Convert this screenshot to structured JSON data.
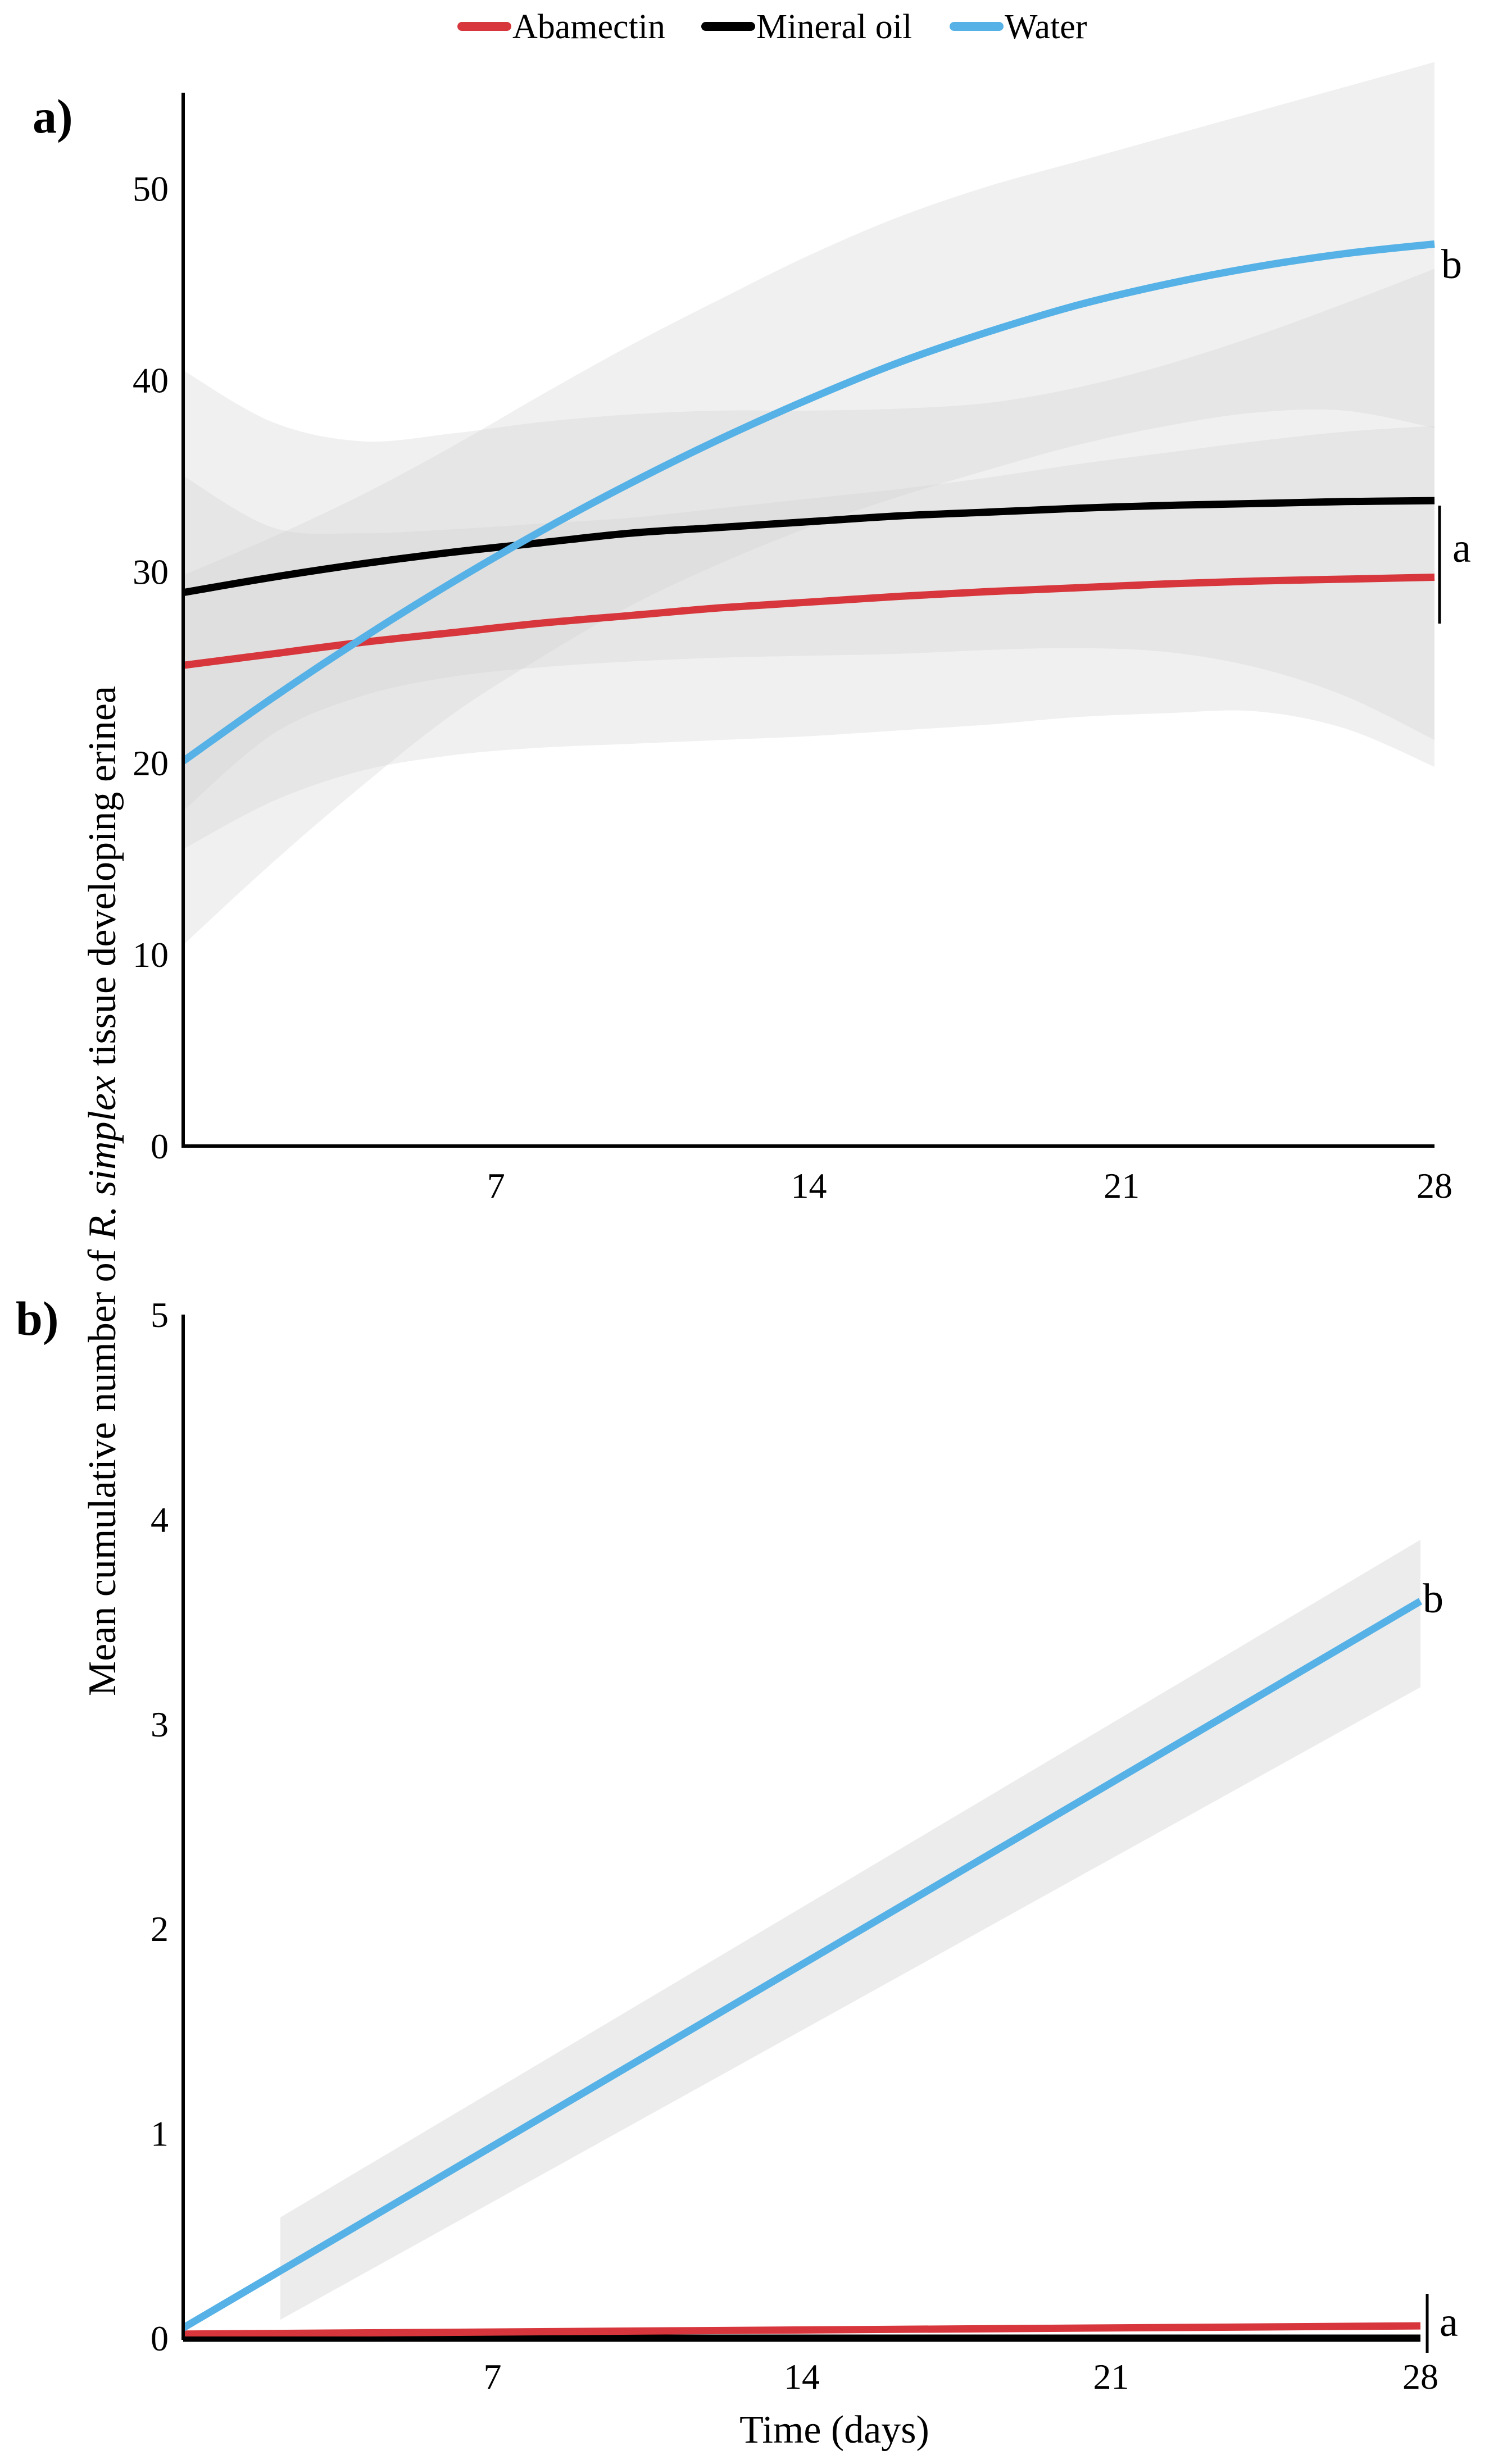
{
  "colors": {
    "abamectin": "#d7373c",
    "mineral_oil": "#000000",
    "water": "#55b1e6",
    "ci_band": "#d0d0d0"
  },
  "legend": [
    {
      "key": "abamectin",
      "label": "Abamectin"
    },
    {
      "key": "mineral_oil",
      "label": "Mineral oil"
    },
    {
      "key": "water",
      "label": "Water"
    }
  ],
  "ylabel": {
    "prefix": "Mean cumulative number of ",
    "species": "R. simplex",
    "suffix": " tissue developing erinea"
  },
  "xlabel": "Time (days)",
  "chart_data": [
    {
      "panel": "a)",
      "type": "line",
      "xlim": [
        0,
        28
      ],
      "ylim": [
        0,
        55
      ],
      "xticks": [
        7,
        14,
        21,
        28
      ],
      "yticks": [
        0,
        10,
        20,
        30,
        40,
        50
      ],
      "x": [
        0,
        2,
        4,
        6,
        8,
        10,
        12,
        14,
        16,
        18,
        20,
        22,
        24,
        26,
        28
      ],
      "series": [
        {
          "key": "abamectin",
          "name": "Abamectin",
          "values": [
            25.1,
            25.7,
            26.3,
            26.8,
            27.3,
            27.7,
            28.1,
            28.4,
            28.7,
            28.95,
            29.15,
            29.35,
            29.5,
            29.6,
            29.7
          ],
          "lower": [
            15.5,
            18.0,
            19.6,
            20.4,
            20.8,
            21.0,
            21.2,
            21.4,
            21.7,
            22.0,
            22.4,
            22.6,
            22.7,
            21.8,
            19.8
          ],
          "upper": [
            35.0,
            32.3,
            32.0,
            32.2,
            32.5,
            32.8,
            33.3,
            33.8,
            34.3,
            34.9,
            35.6,
            36.2,
            36.8,
            37.3,
            37.6
          ]
        },
        {
          "key": "mineral_oil",
          "name": "Mineral oil",
          "values": [
            28.9,
            29.7,
            30.4,
            31.0,
            31.5,
            32.0,
            32.3,
            32.6,
            32.9,
            33.1,
            33.3,
            33.45,
            33.55,
            33.65,
            33.7
          ],
          "lower": [
            17.5,
            21.5,
            23.5,
            24.5,
            25.0,
            25.3,
            25.5,
            25.6,
            25.7,
            25.9,
            26.0,
            25.8,
            25.0,
            23.5,
            21.2
          ],
          "upper": [
            40.5,
            37.8,
            36.8,
            37.2,
            37.8,
            38.2,
            38.4,
            38.4,
            38.5,
            38.8,
            39.6,
            40.8,
            42.3,
            44.0,
            45.8
          ]
        },
        {
          "key": "water",
          "name": "Water",
          "values": [
            20.1,
            23.4,
            26.5,
            29.4,
            32.1,
            34.6,
            36.9,
            39.0,
            40.9,
            42.5,
            43.9,
            45.0,
            45.9,
            46.6,
            47.1
          ],
          "lower": [
            10.5,
            14.8,
            18.8,
            22.5,
            25.5,
            28.2,
            30.4,
            32.3,
            33.9,
            35.3,
            36.6,
            37.6,
            38.3,
            38.4,
            37.5
          ],
          "upper": [
            29.8,
            31.8,
            34.0,
            36.5,
            39.2,
            41.8,
            44.2,
            46.5,
            48.5,
            50.1,
            51.4,
            52.7,
            54.0,
            55.3,
            56.6
          ]
        }
      ],
      "annotations": [
        {
          "label": "b",
          "series": [
            "water"
          ],
          "bracket": false
        },
        {
          "label": "a",
          "series": [
            "mineral_oil",
            "abamectin"
          ],
          "bracket": true
        }
      ]
    },
    {
      "panel": "b)",
      "type": "line",
      "xlim": [
        0,
        28
      ],
      "ylim": [
        0,
        5
      ],
      "xticks": [
        7,
        14,
        21,
        28
      ],
      "yticks": [
        0,
        1,
        2,
        3,
        4,
        5
      ],
      "x": [
        0,
        28
      ],
      "series": [
        {
          "key": "mineral_oil",
          "name": "Mineral oil",
          "values": [
            0.0,
            0.0
          ]
        },
        {
          "key": "abamectin",
          "name": "Abamectin",
          "values": [
            0.02,
            0.06
          ]
        },
        {
          "key": "water",
          "name": "Water",
          "values": [
            0.05,
            3.6
          ],
          "ci_x": [
            2.2,
            28
          ],
          "ci_lower": [
            0.09,
            3.18
          ],
          "ci_upper": [
            0.59,
            3.9
          ]
        }
      ],
      "annotations": [
        {
          "label": "b",
          "series": [
            "water"
          ],
          "bracket": false
        },
        {
          "label": "a",
          "series": [
            "abamectin",
            "mineral_oil"
          ],
          "bracket": true
        }
      ]
    }
  ]
}
